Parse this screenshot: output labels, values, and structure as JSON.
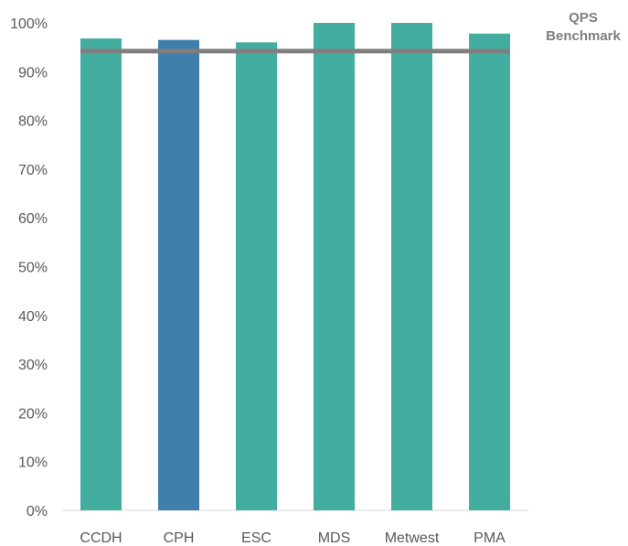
{
  "chart_data": {
    "type": "bar",
    "categories": [
      "CCDH",
      "CPH",
      "ESC",
      "MDS",
      "Metwest",
      "PMA"
    ],
    "values": [
      96.8,
      96.5,
      96.0,
      100.0,
      100.0,
      97.8
    ],
    "bar_colors": [
      "#43ae9f",
      "#3f7fab",
      "#43ae9f",
      "#43ae9f",
      "#43ae9f",
      "#43ae9f"
    ],
    "benchmark": {
      "label_line1": "QPS",
      "label_line2": "Benchmark",
      "value": 94.2,
      "color": "#7f7f7f"
    },
    "ylim": [
      0,
      100
    ],
    "yticks": [
      0,
      10,
      20,
      30,
      40,
      50,
      60,
      70,
      80,
      90,
      100
    ],
    "ytick_labels": [
      "0%",
      "10%",
      "20%",
      "30%",
      "40%",
      "50%",
      "60%",
      "70%",
      "80%",
      "90%",
      "100%"
    ],
    "grid": false,
    "legend": "top-right"
  }
}
